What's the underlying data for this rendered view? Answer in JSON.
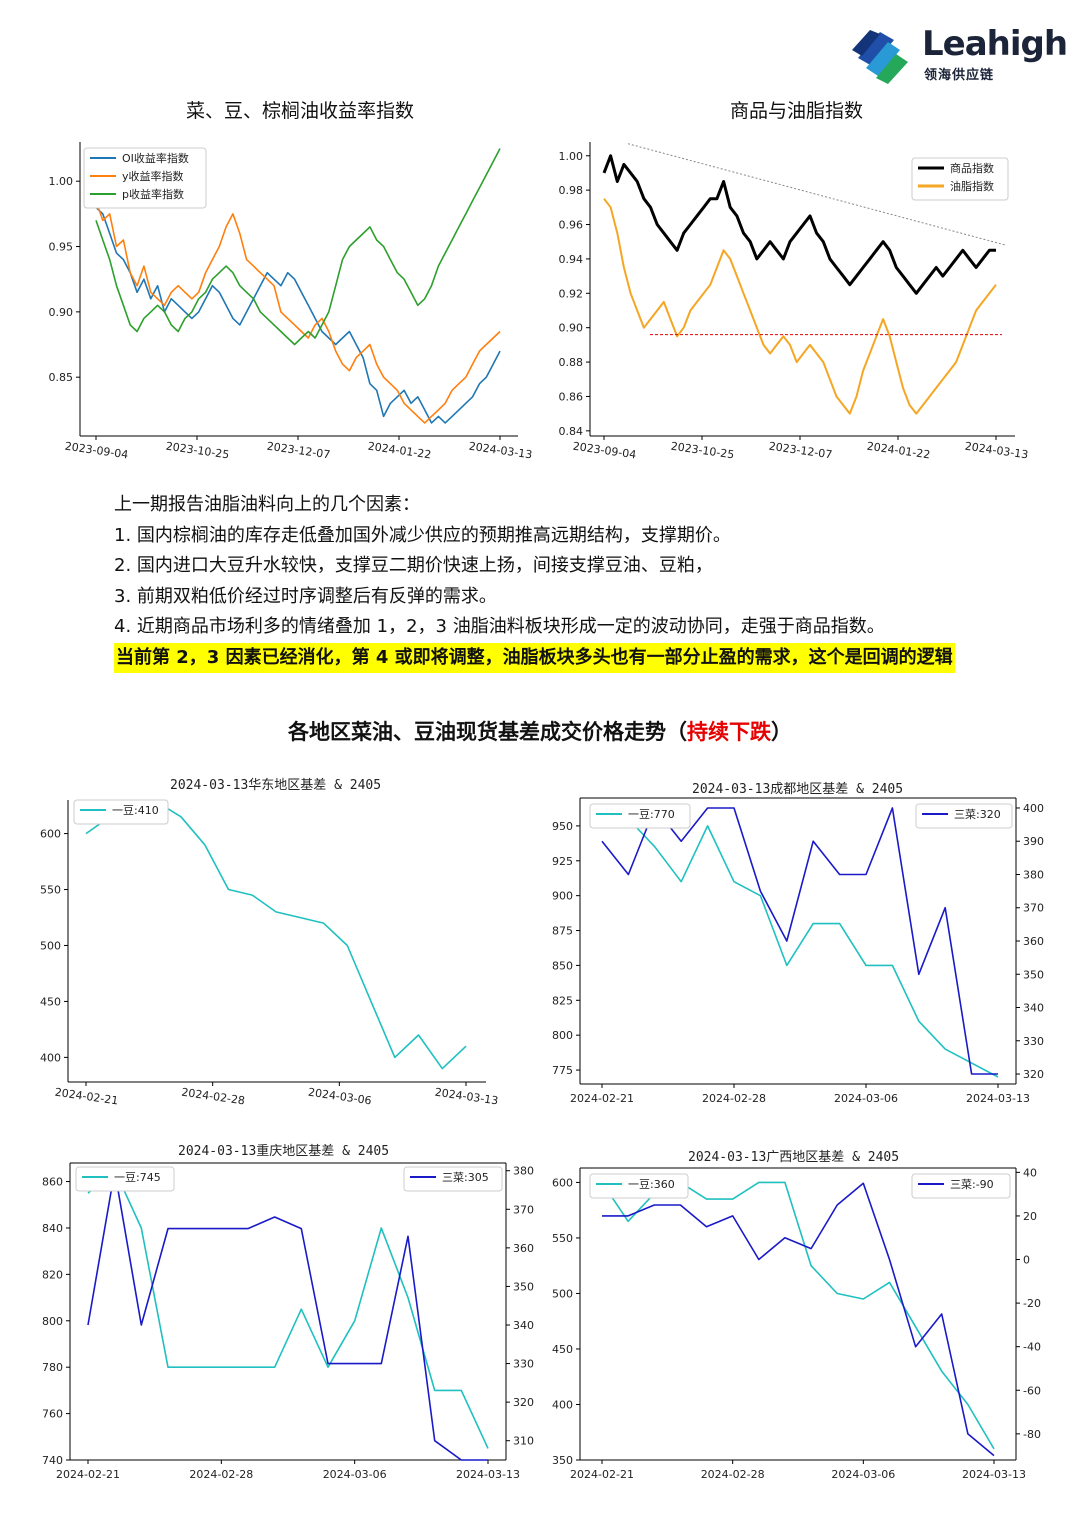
{
  "logo": {
    "name": "Leahigh",
    "sub": "领海供应链"
  },
  "charts": {
    "c1": {
      "title": "菜、豆、棕榈油收益率指数"
    },
    "c2": {
      "title": "商品与油脂指数"
    },
    "c3": {
      "title": "2024-03-13华东地区基差 & 2405"
    },
    "c4": {
      "title": "2024-03-13成都地区基差 & 2405"
    },
    "c5": {
      "title": "2024-03-13重庆地区基差 & 2405"
    },
    "c6": {
      "title": "2024-03-13广西地区基差 & 2405"
    }
  },
  "text": {
    "heading": "上一期报告油脂油料向上的几个因素：",
    "p1": "1. 国内棕榈油的库存走低叠加国外减少供应的预期推高远期结构，支撑期价。",
    "p2": "2. 国内进口大豆升水较快，支撑豆二期价快速上扬，间接支撑豆油、豆粕，",
    "p3": "3. 前期双粕低价经过时序调整后有反弹的需求。",
    "p4": "4. 近期商品市场利多的情绪叠加 1，2，3 油脂油料板块形成一定的波动协同，走强于商品指数。",
    "highlight": "当前第 2，3 因素已经消化，第 4 或即将调整，油脂板块多头也有一部分止盈的需求，这个是回调的逻辑"
  },
  "section": {
    "title_main": "各地区菜油、豆油现货基差成交价格走势（",
    "title_red": "持续下跌",
    "title_end": "）"
  },
  "chart_data": [
    {
      "type": "line",
      "title": "菜、豆、棕榈油收益率指数",
      "x_ticks": [
        "2023-09-04",
        "2023-10-25",
        "2023-12-07",
        "2024-01-22",
        "2024-03-13"
      ],
      "y_ticks": [
        "0.85",
        "0.90",
        "0.95",
        "1.00"
      ],
      "ylim": [
        0.805,
        1.03
      ],
      "legend": "top-left",
      "series": [
        {
          "name": "OI收益率指数",
          "color": "#1f77b4",
          "values": [
            0.98,
            0.975,
            0.96,
            0.945,
            0.94,
            0.93,
            0.915,
            0.925,
            0.91,
            0.92,
            0.9,
            0.91,
            0.905,
            0.9,
            0.895,
            0.9,
            0.91,
            0.92,
            0.915,
            0.905,
            0.895,
            0.89,
            0.9,
            0.91,
            0.92,
            0.93,
            0.925,
            0.92,
            0.93,
            0.925,
            0.915,
            0.905,
            0.895,
            0.885,
            0.88,
            0.875,
            0.88,
            0.885,
            0.875,
            0.865,
            0.845,
            0.84,
            0.82,
            0.83,
            0.835,
            0.84,
            0.83,
            0.835,
            0.825,
            0.815,
            0.82,
            0.815,
            0.82,
            0.825,
            0.83,
            0.835,
            0.845,
            0.85,
            0.86,
            0.87
          ]
        },
        {
          "name": "y收益率指数",
          "color": "#ff7f0e",
          "values": [
            0.985,
            0.97,
            0.975,
            0.95,
            0.955,
            0.93,
            0.92,
            0.935,
            0.915,
            0.91,
            0.905,
            0.915,
            0.92,
            0.915,
            0.91,
            0.915,
            0.93,
            0.94,
            0.95,
            0.965,
            0.975,
            0.96,
            0.94,
            0.935,
            0.93,
            0.925,
            0.92,
            0.9,
            0.895,
            0.89,
            0.885,
            0.88,
            0.89,
            0.895,
            0.885,
            0.87,
            0.86,
            0.855,
            0.865,
            0.87,
            0.875,
            0.86,
            0.85,
            0.845,
            0.84,
            0.83,
            0.825,
            0.82,
            0.815,
            0.82,
            0.825,
            0.83,
            0.84,
            0.845,
            0.85,
            0.86,
            0.87,
            0.875,
            0.88,
            0.885
          ]
        },
        {
          "name": "p收益率指数",
          "color": "#2ca02c",
          "values": [
            0.97,
            0.955,
            0.94,
            0.92,
            0.905,
            0.89,
            0.885,
            0.895,
            0.9,
            0.905,
            0.9,
            0.89,
            0.885,
            0.895,
            0.9,
            0.91,
            0.915,
            0.925,
            0.93,
            0.935,
            0.93,
            0.92,
            0.915,
            0.91,
            0.9,
            0.895,
            0.89,
            0.885,
            0.88,
            0.875,
            0.88,
            0.885,
            0.88,
            0.89,
            0.9,
            0.92,
            0.94,
            0.95,
            0.955,
            0.96,
            0.965,
            0.955,
            0.95,
            0.94,
            0.93,
            0.925,
            0.915,
            0.905,
            0.91,
            0.92,
            0.935,
            0.945,
            0.955,
            0.965,
            0.975,
            0.985,
            0.995,
            1.005,
            1.015,
            1.025
          ]
        }
      ]
    },
    {
      "type": "line",
      "title": "商品与油脂指数",
      "x_ticks": [
        "2023-09-04",
        "2023-10-25",
        "2023-12-07",
        "2024-01-22",
        "2024-03-13"
      ],
      "y_ticks": [
        "0.84",
        "0.86",
        "0.88",
        "0.90",
        "0.92",
        "0.94",
        "0.96",
        "0.98",
        "1.00"
      ],
      "ylim": [
        0.837,
        1.008
      ],
      "legend": "top-right",
      "series": [
        {
          "name": "商品指数",
          "color": "#000000",
          "values": [
            0.99,
            1.0,
            0.985,
            0.995,
            0.99,
            0.985,
            0.975,
            0.97,
            0.96,
            0.955,
            0.95,
            0.945,
            0.955,
            0.96,
            0.965,
            0.97,
            0.975,
            0.975,
            0.985,
            0.97,
            0.965,
            0.955,
            0.95,
            0.94,
            0.945,
            0.95,
            0.945,
            0.94,
            0.95,
            0.955,
            0.96,
            0.965,
            0.955,
            0.95,
            0.94,
            0.935,
            0.93,
            0.925,
            0.93,
            0.935,
            0.94,
            0.945,
            0.95,
            0.945,
            0.935,
            0.93,
            0.925,
            0.92,
            0.925,
            0.93,
            0.935,
            0.93,
            0.935,
            0.94,
            0.945,
            0.94,
            0.935,
            0.94,
            0.945,
            0.945
          ]
        },
        {
          "name": "油脂指数",
          "color": "#f5a623",
          "values": [
            0.975,
            0.97,
            0.955,
            0.935,
            0.92,
            0.91,
            0.9,
            0.905,
            0.91,
            0.915,
            0.905,
            0.895,
            0.9,
            0.91,
            0.915,
            0.92,
            0.925,
            0.935,
            0.945,
            0.94,
            0.93,
            0.92,
            0.91,
            0.9,
            0.89,
            0.885,
            0.89,
            0.895,
            0.89,
            0.88,
            0.885,
            0.89,
            0.885,
            0.88,
            0.87,
            0.86,
            0.855,
            0.85,
            0.86,
            0.875,
            0.885,
            0.895,
            0.905,
            0.895,
            0.88,
            0.865,
            0.855,
            0.85,
            0.855,
            0.86,
            0.865,
            0.87,
            0.875,
            0.88,
            0.89,
            0.9,
            0.91,
            0.915,
            0.92,
            0.925
          ]
        },
        {
          "name": "trend",
          "color": "#888888",
          "values": [
            1.007,
            0.948
          ]
        },
        {
          "name": "support",
          "color": "#e60000",
          "values": [
            0.896,
            0.896
          ]
        }
      ]
    },
    {
      "type": "line",
      "title": "2024-03-13华东地区基差 & 2405",
      "x_ticks": [
        "2024-02-21",
        "2024-02-28",
        "2024-03-06",
        "2024-03-13"
      ],
      "y_ticks": [
        "400",
        "450",
        "500",
        "550",
        "600"
      ],
      "ylim": [
        378,
        630
      ],
      "series": [
        {
          "name": "一豆:410",
          "color": "#20c0c0",
          "values": [
            600,
            615,
            625,
            628,
            615,
            590,
            550,
            545,
            530,
            525,
            520,
            500,
            450,
            400,
            420,
            390,
            410
          ]
        }
      ]
    },
    {
      "type": "line",
      "title": "2024-03-13成都地区基差 & 2405",
      "x_ticks": [
        "2024-02-21",
        "2024-02-28",
        "2024-03-06",
        "2024-03-13"
      ],
      "y_ticks_left": [
        "775",
        "800",
        "825",
        "850",
        "875",
        "900",
        "925",
        "950"
      ],
      "y_ticks_right": [
        "320",
        "330",
        "340",
        "350",
        "360",
        "370",
        "380",
        "390",
        "400"
      ],
      "ylim_left": [
        765,
        970
      ],
      "ylim_right": [
        317,
        403
      ],
      "series": [
        {
          "name": "一豆:770",
          "axis": "left",
          "color": "#20c0c0",
          "values": [
            960,
            955,
            935,
            910,
            950,
            910,
            900,
            850,
            880,
            880,
            850,
            850,
            810,
            790,
            780,
            770
          ]
        },
        {
          "name": "三菜:320",
          "axis": "right",
          "color": "#1a1ac8",
          "values": [
            390,
            380,
            400,
            390,
            400,
            400,
            375,
            360,
            390,
            380,
            380,
            400,
            350,
            370,
            320,
            320
          ]
        }
      ]
    },
    {
      "type": "line",
      "title": "2024-03-13重庆地区基差 & 2405",
      "x_ticks": [
        "2024-02-21",
        "2024-02-28",
        "2024-03-06",
        "2024-03-13"
      ],
      "y_ticks_left": [
        "740",
        "760",
        "780",
        "800",
        "820",
        "840",
        "860"
      ],
      "y_ticks_right": [
        "310",
        "320",
        "330",
        "340",
        "350",
        "360",
        "370",
        "380"
      ],
      "ylim_left": [
        740,
        868
      ],
      "ylim_right": [
        305,
        382
      ],
      "series": [
        {
          "name": "一豆:745",
          "axis": "left",
          "color": "#20c0c0",
          "values": [
            855,
            865,
            840,
            780,
            780,
            780,
            780,
            780,
            805,
            780,
            800,
            840,
            810,
            770,
            770,
            745
          ]
        },
        {
          "name": "三菜:305",
          "axis": "right",
          "color": "#1a1ac8",
          "values": [
            340,
            380,
            340,
            365,
            365,
            365,
            365,
            368,
            365,
            330,
            330,
            330,
            363,
            310,
            305,
            305
          ]
        }
      ]
    },
    {
      "type": "line",
      "title": "2024-03-13广西地区基差 & 2405",
      "x_ticks": [
        "2024-02-21",
        "2024-02-28",
        "2024-03-06",
        "2024-03-13"
      ],
      "y_ticks_left": [
        "350",
        "400",
        "450",
        "500",
        "550",
        "600"
      ],
      "y_ticks_right": [
        "-80",
        "-60",
        "-40",
        "-20",
        "0",
        "20",
        "40"
      ],
      "ylim_left": [
        350,
        613
      ],
      "ylim_right": [
        -92,
        42
      ],
      "series": [
        {
          "name": "一豆:360",
          "axis": "left",
          "color": "#20c0c0",
          "values": [
            600,
            565,
            590,
            600,
            585,
            585,
            600,
            600,
            525,
            500,
            495,
            510,
            470,
            430,
            400,
            360
          ]
        },
        {
          "name": "三菜:-90",
          "axis": "right",
          "color": "#1a1ac8",
          "values": [
            20,
            20,
            25,
            25,
            15,
            20,
            0,
            10,
            5,
            25,
            35,
            0,
            -40,
            -25,
            -80,
            -90
          ]
        }
      ]
    }
  ]
}
